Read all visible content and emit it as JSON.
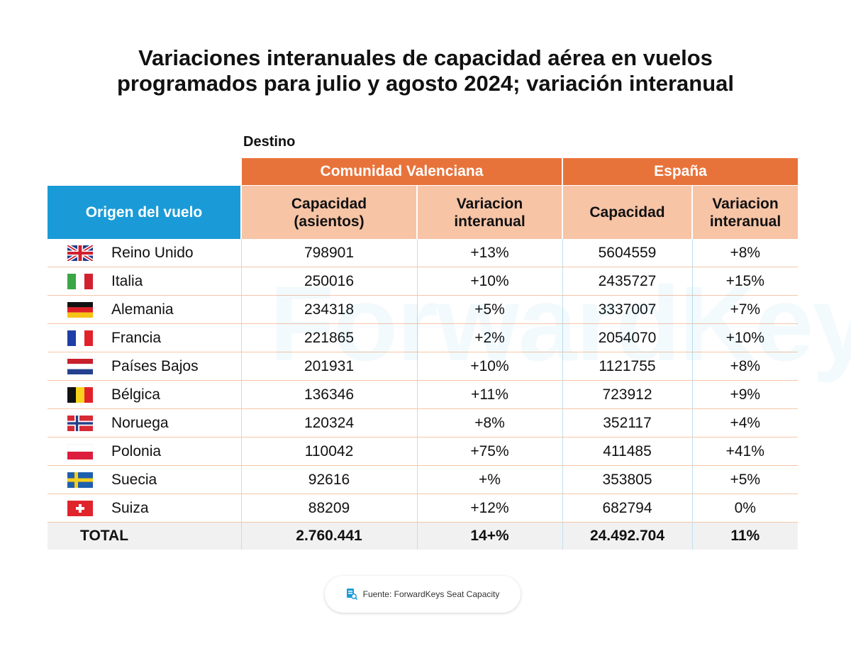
{
  "title": "Variaciones interanuales de capacidad aérea en vuelos programados para julio y agosto 2024; variación interanual",
  "watermark": "ForwardKeys",
  "table": {
    "destino_label": "Destino",
    "groups": [
      "Comunidad Valenciana",
      "España"
    ],
    "columns": [
      "Origen del vuelo",
      "Capacidad (asientos)",
      "Variacion interanual",
      "Capacidad",
      "Variacion interanual"
    ],
    "rows": [
      [
        "Reino Unido",
        "798901",
        "+13%",
        "5604559",
        "+8%"
      ],
      [
        "Italia",
        "250016",
        "+10%",
        "2435727",
        "+15%"
      ],
      [
        "Alemania",
        "234318",
        "+5%",
        "3337007",
        "+7%"
      ],
      [
        "Francia",
        "221865",
        "+2%",
        "2054070",
        "+10%"
      ],
      [
        "Países Bajos",
        "201931",
        "+10%",
        "1121755",
        "+8%"
      ],
      [
        "Bélgica",
        "136346",
        "+11%",
        "723912",
        "+9%"
      ],
      [
        "Noruega",
        "120324",
        "+8%",
        "352117",
        "+4%"
      ],
      [
        "Polonia",
        "110042",
        "+75%",
        "411485",
        "+41%"
      ],
      [
        "Suecia",
        "92616",
        "+%",
        "353805",
        "+5%"
      ],
      [
        "Suiza",
        "88209",
        "+12%",
        "682794",
        "0%"
      ]
    ],
    "total": [
      "TOTAL",
      "2.760.441",
      "14+%",
      "24.492.704",
      "11%"
    ]
  },
  "source": "Fuente: ForwardKeys Seat Capacity"
}
